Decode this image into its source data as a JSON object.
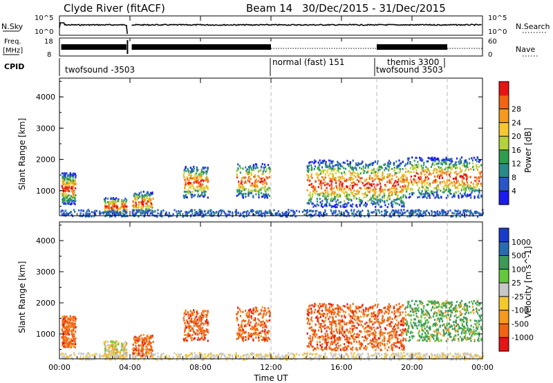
{
  "header": {
    "station": "Clyde River (fitACF)",
    "beam": "Beam 14",
    "dates": "30/Dec/2015 - 31/Dec/2015"
  },
  "noise_panel": {
    "left_label": "N.Sky",
    "left_ticks": [
      "10^5",
      "10^0"
    ],
    "right_label": "N.Search",
    "right_ticks": [
      "10^5",
      "10^0"
    ]
  },
  "freq_panel": {
    "left_label_1": "Freq.",
    "left_label_2": "[MHz]",
    "left_ticks": [
      "18",
      "8"
    ],
    "right_label": "Nave",
    "right_ticks": [
      "60",
      "0"
    ]
  },
  "cpid_panel": {
    "label": "CPID",
    "modes": [
      {
        "name": "twofsound -3503"
      },
      {
        "name": "normal (fast) 151"
      },
      {
        "name": "themis 3300"
      },
      {
        "name": "twofsound 3503"
      }
    ]
  },
  "chart_data": [
    {
      "type": "heatmap",
      "ylabel": "Slant Range [km]",
      "y_ticks": [
        "1000",
        "2000",
        "3000",
        "4000"
      ],
      "ylim": [
        200,
        4600
      ],
      "colorbar": {
        "label": "Power [dB]",
        "ticks": [
          "4",
          "8",
          "12",
          "16",
          "20",
          "24",
          "28"
        ],
        "colors": [
          "#1c1cf0",
          "#2a55c8",
          "#2a8a8a",
          "#2e9e4e",
          "#b4d23c",
          "#f5c832",
          "#f59a1e",
          "#f06414",
          "#e61414"
        ]
      },
      "sections_dashed_at_hours": [
        12,
        18,
        22
      ]
    },
    {
      "type": "heatmap",
      "ylabel": "Slant Range [km]",
      "y_ticks": [
        "1000",
        "2000",
        "3000",
        "4000"
      ],
      "ylim": [
        200,
        4600
      ],
      "colorbar": {
        "label": "Velocity [m s^-1]",
        "ticks": [
          "1000",
          "500",
          "100",
          "25",
          "-25",
          "-100",
          "-500",
          "-1000"
        ],
        "colors": [
          "#1a3ccc",
          "#2a6ab0",
          "#3c9a5a",
          "#64c83c",
          "#c8c8c8",
          "#f5c832",
          "#f59a1e",
          "#f06414",
          "#e61414"
        ]
      }
    }
  ],
  "x_axis": {
    "ticks": [
      "00:00",
      "04:00",
      "08:00",
      "12:00",
      "16:00",
      "20:00",
      "00:00"
    ],
    "label": "Time UT"
  }
}
